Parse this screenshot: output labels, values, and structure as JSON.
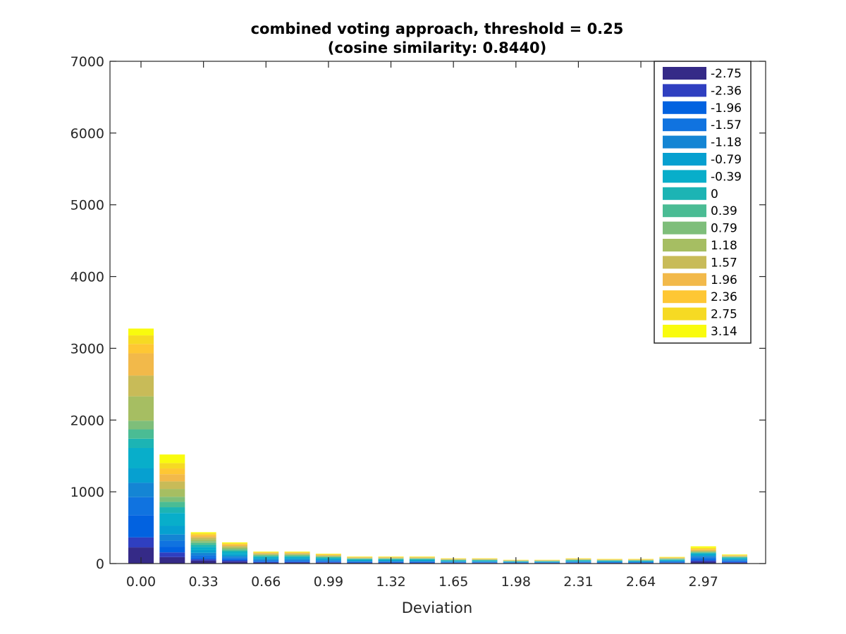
{
  "chart_data": {
    "type": "bar",
    "stacked": true,
    "title": "combined voting approach, threshold = 0.25",
    "subtitle": "(cosine similarity: 0.8440)",
    "xlabel": "Deviation",
    "ylabel": "",
    "ylim": [
      0,
      7000
    ],
    "yticks": [
      "0",
      "1000",
      "2000",
      "3000",
      "4000",
      "5000",
      "6000",
      "7000"
    ],
    "xtick_labels": [
      "0.00",
      "0.33",
      "0.66",
      "0.99",
      "1.32",
      "1.65",
      "1.98",
      "2.31",
      "2.64",
      "2.97"
    ],
    "x": [
      0.0,
      0.165,
      0.33,
      0.495,
      0.66,
      0.825,
      0.99,
      1.155,
      1.32,
      1.485,
      1.65,
      1.815,
      1.98,
      2.145,
      2.31,
      2.475,
      2.64,
      2.805,
      2.97,
      3.135
    ],
    "legend_position": "top-right",
    "grid": false,
    "series": [
      {
        "name": "-2.75",
        "color": "#352a87",
        "values": [
          225,
          90,
          40,
          28,
          14,
          14,
          12,
          9,
          9,
          9,
          7,
          7,
          5,
          5,
          7,
          6,
          6,
          8,
          25,
          12
        ]
      },
      {
        "name": "-2.36",
        "color": "#2f3fc0",
        "values": [
          140,
          65,
          22,
          16,
          8,
          8,
          7,
          5,
          5,
          5,
          4,
          4,
          3,
          3,
          4,
          4,
          4,
          5,
          18,
          9
        ]
      },
      {
        "name": "-1.96",
        "color": "#0262e0",
        "values": [
          310,
          80,
          25,
          18,
          10,
          10,
          8,
          6,
          6,
          6,
          5,
          5,
          3,
          3,
          5,
          4,
          4,
          6,
          20,
          10
        ]
      },
      {
        "name": "-1.57",
        "color": "#1073e0",
        "values": [
          250,
          85,
          30,
          20,
          12,
          12,
          10,
          7,
          7,
          7,
          5,
          5,
          4,
          4,
          5,
          5,
          5,
          7,
          22,
          11
        ]
      },
      {
        "name": "-1.18",
        "color": "#1485d4",
        "values": [
          200,
          85,
          32,
          22,
          13,
          13,
          11,
          8,
          8,
          8,
          6,
          6,
          4,
          4,
          6,
          5,
          5,
          8,
          20,
          11
        ]
      },
      {
        "name": "-0.79",
        "color": "#06a0d0",
        "values": [
          205,
          120,
          38,
          25,
          15,
          15,
          12,
          9,
          9,
          9,
          6,
          6,
          4,
          4,
          6,
          6,
          6,
          8,
          18,
          12
        ]
      },
      {
        "name": "-0.39",
        "color": "#08aeca",
        "values": [
          280,
          180,
          42,
          28,
          18,
          18,
          14,
          10,
          10,
          10,
          7,
          7,
          5,
          5,
          7,
          6,
          6,
          9,
          16,
          12
        ]
      },
      {
        "name": "0",
        "color": "#1cb4b4",
        "values": [
          130,
          80,
          30,
          20,
          12,
          12,
          10,
          7,
          7,
          7,
          5,
          5,
          3,
          3,
          5,
          4,
          4,
          6,
          10,
          8
        ]
      },
      {
        "name": "0.39",
        "color": "#4abc94",
        "values": [
          130,
          75,
          28,
          18,
          10,
          10,
          8,
          6,
          6,
          6,
          4,
          4,
          3,
          3,
          4,
          4,
          4,
          5,
          8,
          6
        ]
      },
      {
        "name": "0.79",
        "color": "#7ebe7a",
        "values": [
          120,
          70,
          25,
          16,
          9,
          9,
          7,
          5,
          5,
          5,
          4,
          4,
          3,
          3,
          4,
          3,
          3,
          5,
          7,
          5
        ]
      },
      {
        "name": "1.18",
        "color": "#a6be62",
        "values": [
          340,
          110,
          28,
          18,
          10,
          10,
          8,
          5,
          5,
          5,
          4,
          4,
          3,
          3,
          4,
          3,
          3,
          5,
          8,
          5
        ]
      },
      {
        "name": "1.57",
        "color": "#c8bb58",
        "values": [
          290,
          105,
          25,
          16,
          9,
          9,
          7,
          5,
          5,
          5,
          4,
          4,
          3,
          3,
          4,
          3,
          3,
          4,
          9,
          5
        ]
      },
      {
        "name": "1.96",
        "color": "#f2b94a",
        "values": [
          310,
          100,
          22,
          15,
          8,
          8,
          7,
          5,
          5,
          5,
          4,
          4,
          3,
          3,
          4,
          3,
          3,
          4,
          10,
          5
        ]
      },
      {
        "name": "2.36",
        "color": "#fec734",
        "values": [
          130,
          80,
          18,
          12,
          7,
          7,
          6,
          4,
          4,
          4,
          3,
          3,
          2,
          2,
          3,
          3,
          3,
          4,
          12,
          5
        ]
      },
      {
        "name": "2.75",
        "color": "#f6da23",
        "values": [
          120,
          75,
          16,
          11,
          6,
          6,
          5,
          4,
          4,
          4,
          3,
          3,
          2,
          2,
          3,
          3,
          3,
          4,
          15,
          5
        ]
      },
      {
        "name": "3.14",
        "color": "#f9fb0e",
        "values": [
          95,
          120,
          16,
          12,
          6,
          6,
          5,
          4,
          4,
          4,
          3,
          3,
          2,
          2,
          3,
          3,
          3,
          4,
          22,
          6
        ]
      }
    ]
  }
}
